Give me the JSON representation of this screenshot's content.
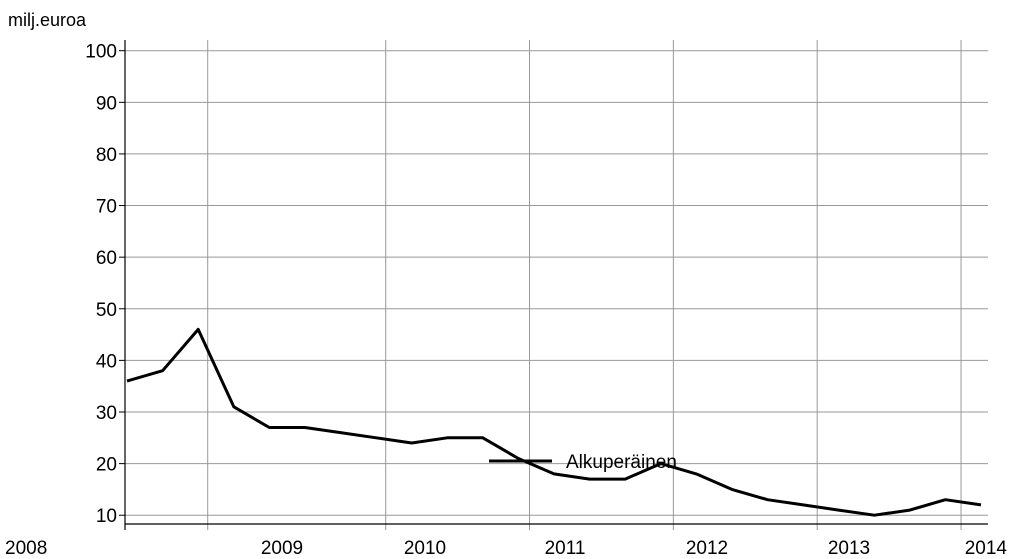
{
  "chart_data": {
    "type": "line",
    "ylabel": "milj.euroa",
    "ylim": [
      10,
      100
    ],
    "yticks": [
      10,
      20,
      30,
      40,
      50,
      60,
      70,
      80,
      90,
      100
    ],
    "xticks": [
      "2008",
      "2009",
      "2010",
      "2011",
      "2012",
      "2013",
      "2014"
    ],
    "grid": true,
    "legend_position": "center",
    "colors": {
      "line": "#000000",
      "grid": "#999999",
      "axis": "#000000"
    },
    "series": [
      {
        "name": "Alkuperäinen",
        "x": [
          "2008Q1",
          "2008Q2",
          "2008Q3",
          "2008Q4",
          "2009Q1",
          "2009Q2",
          "2009Q3",
          "2009Q4",
          "2010Q1",
          "2010Q2",
          "2010Q3",
          "2010Q4",
          "2011Q1",
          "2011Q2",
          "2011Q3",
          "2011Q4",
          "2012Q1",
          "2012Q2",
          "2012Q3",
          "2012Q4",
          "2013Q1",
          "2013Q2",
          "2013Q3",
          "2013Q4",
          "2014Q1"
        ],
        "values": [
          36,
          38,
          46,
          31,
          27,
          27,
          26,
          25,
          24,
          25,
          25,
          21,
          18,
          17,
          17,
          20,
          18,
          15,
          13,
          12,
          11,
          10,
          11,
          13,
          12
        ]
      }
    ]
  }
}
